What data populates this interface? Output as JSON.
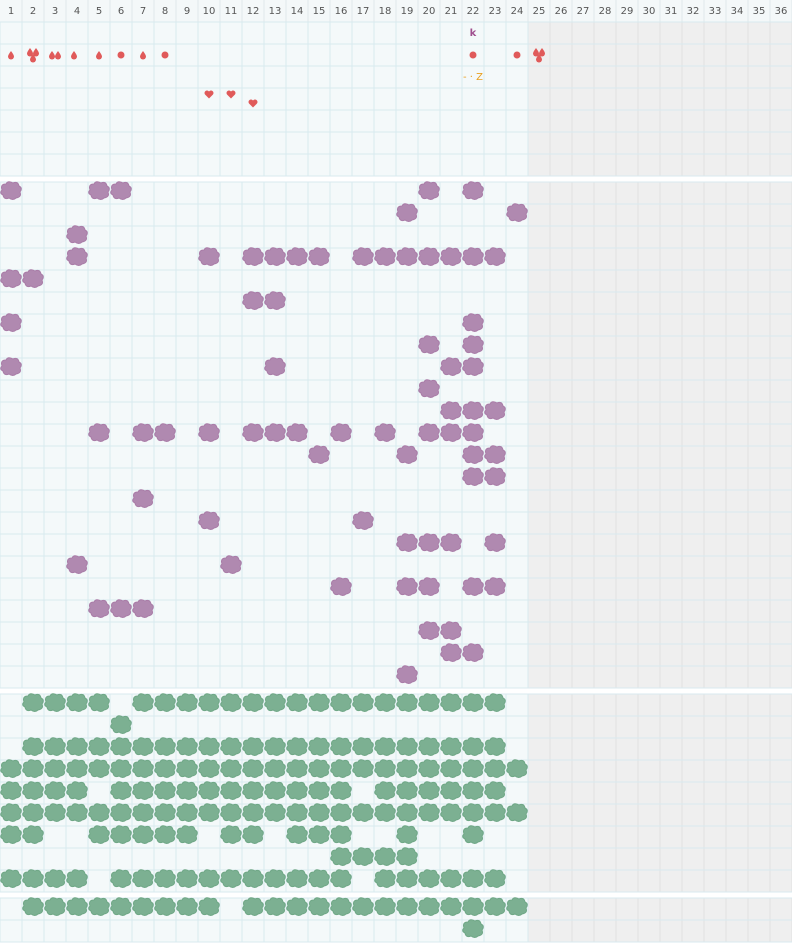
{
  "header": {
    "columns": [
      1,
      2,
      3,
      4,
      5,
      6,
      7,
      8,
      9,
      10,
      11,
      12,
      13,
      14,
      15,
      16,
      17,
      18,
      19,
      20,
      21,
      22,
      23,
      24,
      25,
      26,
      27,
      28,
      29,
      30,
      31,
      32,
      33,
      34,
      35,
      36
    ]
  },
  "markers": {
    "letter": "k",
    "link": "- · Z"
  }
}
